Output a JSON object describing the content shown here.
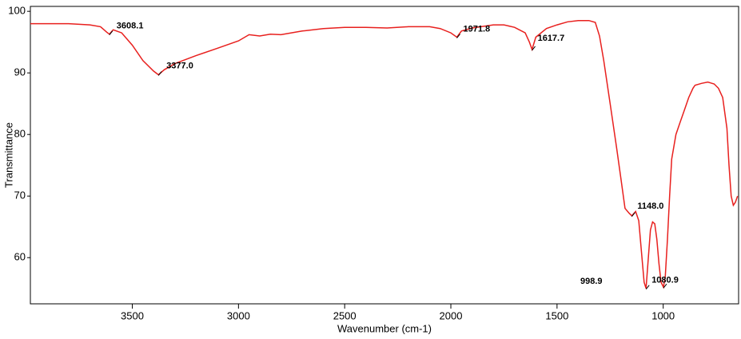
{
  "chart_data": {
    "type": "line",
    "x_label": "Wavenumber (cm-1)",
    "y_label": "Transmittance",
    "xlim": [
      3980,
      645
    ],
    "ylim": [
      52.5,
      100.8
    ],
    "xticks": [
      3500,
      3000,
      2500,
      2000,
      1500,
      1000
    ],
    "yticks": [
      60,
      70,
      80,
      90,
      100
    ],
    "color": "#e8201e",
    "x": [
      3980,
      3800,
      3700,
      3650,
      3620,
      3608.1,
      3590,
      3550,
      3500,
      3450,
      3400,
      3377,
      3350,
      3300,
      3200,
      3100,
      3000,
      2950,
      2900,
      2850,
      2800,
      2700,
      2600,
      2500,
      2400,
      2300,
      2200,
      2100,
      2050,
      2000,
      1971.8,
      1950,
      1900,
      1800,
      1750,
      1700,
      1650,
      1630,
      1617.7,
      1600,
      1550,
      1500,
      1450,
      1400,
      1350,
      1320,
      1300,
      1280,
      1250,
      1220,
      1200,
      1180,
      1160,
      1148,
      1130,
      1115,
      1100,
      1090,
      1080.9,
      1070,
      1060,
      1050,
      1040,
      1030,
      1020,
      1010,
      998.9,
      990,
      980,
      970,
      960,
      940,
      920,
      900,
      880,
      860,
      850,
      820,
      790,
      760,
      740,
      720,
      700,
      690,
      680,
      670,
      660,
      650
    ],
    "values": [
      98.0,
      98.0,
      97.8,
      97.5,
      96.6,
      96.3,
      97.0,
      96.5,
      94.5,
      92.0,
      90.3,
      89.7,
      90.5,
      91.5,
      92.8,
      94.0,
      95.2,
      96.2,
      96.0,
      96.3,
      96.2,
      96.8,
      97.2,
      97.4,
      97.4,
      97.3,
      97.5,
      97.5,
      97.2,
      96.5,
      95.8,
      96.8,
      97.3,
      97.8,
      97.8,
      97.4,
      96.5,
      95.0,
      93.8,
      95.8,
      97.2,
      97.8,
      98.3,
      98.5,
      98.5,
      98.2,
      96.0,
      92.0,
      85.0,
      78.0,
      73.0,
      68.0,
      67.2,
      66.8,
      67.5,
      66.0,
      60.0,
      56.0,
      55.0,
      60.0,
      64.5,
      65.8,
      65.5,
      63.0,
      59.0,
      56.0,
      55.2,
      57.0,
      63.0,
      70.0,
      76.0,
      80.0,
      82.0,
      84.0,
      86.0,
      87.5,
      88.0,
      88.3,
      88.5,
      88.2,
      87.5,
      86.0,
      81.0,
      75.0,
      70.0,
      68.5,
      69.0,
      70.0
    ],
    "annotations": [
      {
        "text": "3608.1",
        "x": 3608.1,
        "y": 96.3
      },
      {
        "text": "3377.0",
        "x": 3377,
        "y": 89.7
      },
      {
        "text": "1971.8",
        "x": 1971.8,
        "y": 95.8
      },
      {
        "text": "1617.7",
        "x": 1617.7,
        "y": 93.8
      },
      {
        "text": "1148.0",
        "x": 1148,
        "y": 66.8
      },
      {
        "text": "1080.9",
        "x": 1080.9,
        "y": 55.0
      },
      {
        "text": "998.9",
        "x": 998.9,
        "y": 55.2
      }
    ]
  }
}
